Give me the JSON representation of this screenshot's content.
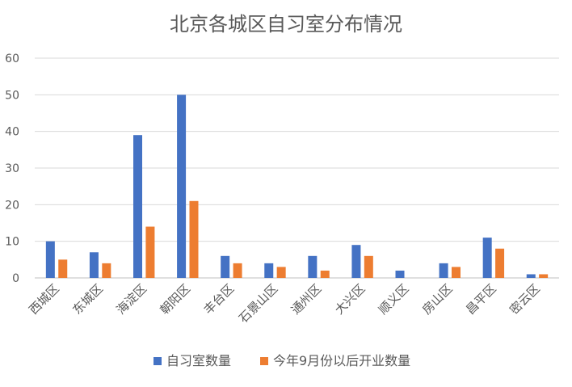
{
  "chart_data": {
    "type": "bar",
    "title": "北京各城区自习室分布情况",
    "categories": [
      "西城区",
      "东城区",
      "海淀区",
      "朝阳区",
      "丰台区",
      "石景山区",
      "通州区",
      "大兴区",
      "顺义区",
      "房山区",
      "昌平区",
      "密云区"
    ],
    "series": [
      {
        "name": "自习室数量",
        "color": "#4472C4",
        "values": [
          10,
          7,
          39,
          50,
          6,
          4,
          6,
          9,
          2,
          4,
          11,
          1
        ]
      },
      {
        "name": "今年9月份以后开业数量",
        "color": "#ED7D31",
        "values": [
          5,
          4,
          14,
          21,
          4,
          3,
          2,
          6,
          0,
          3,
          8,
          1
        ]
      }
    ],
    "ylim": [
      0,
      60
    ],
    "yticks": [
      "0",
      "10",
      "20",
      "30",
      "40",
      "50",
      "60"
    ],
    "grid": true,
    "legend_position": "bottom"
  }
}
